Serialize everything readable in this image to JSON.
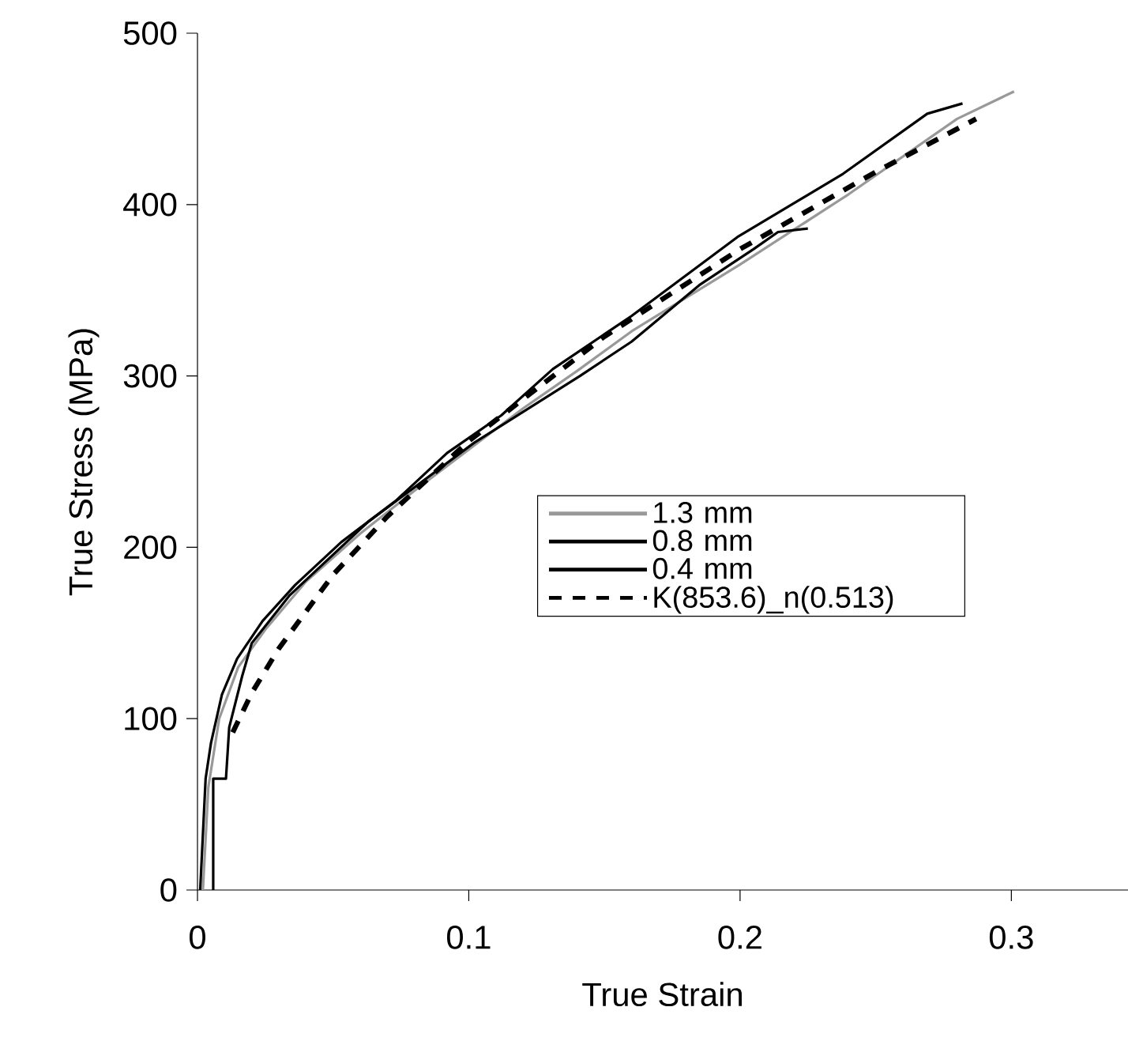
{
  "chart_data": {
    "type": "line",
    "xlabel": "True Strain",
    "ylabel": "True Stress (MPa)",
    "xlim": [
      0,
      0.343
    ],
    "ylim": [
      0,
      500
    ],
    "xticks": [
      0,
      0.1,
      0.2,
      0.3
    ],
    "yticks": [
      0,
      100,
      200,
      300,
      400,
      500
    ],
    "legend": "right",
    "series": [
      {
        "name": "1.3 mm",
        "color": "#999999",
        "line_style": "solid",
        "x": [
          0.002,
          0.004,
          0.008,
          0.015,
          0.025,
          0.04,
          0.06,
          0.08,
          0.1,
          0.12,
          0.14,
          0.16,
          0.2,
          0.24,
          0.28,
          0.301
        ],
        "values": [
          0,
          60,
          100,
          130,
          152,
          180,
          208,
          233,
          257,
          281,
          303,
          326,
          365,
          406,
          450,
          466
        ]
      },
      {
        "name": "0.8 mm",
        "color": "#000000",
        "line_style": "solid",
        "x": [
          0.001,
          0.003,
          0.005,
          0.009,
          0.0146,
          0.024,
          0.036,
          0.053,
          0.073,
          0.092,
          0.112,
          0.131,
          0.16,
          0.199,
          0.238,
          0.269,
          0.282
        ],
        "values": [
          0,
          65,
          86,
          114,
          135,
          157,
          178,
          203,
          227,
          255,
          277,
          304,
          335,
          381,
          418,
          453,
          459
        ]
      },
      {
        "name": "0.4 mm",
        "color": "#000000",
        "line_style": "solid",
        "x": [
          0.0058,
          0.0058,
          0.0105,
          0.0117,
          0.0165,
          0.02,
          0.034,
          0.063,
          0.102,
          0.141,
          0.16,
          0.185,
          0.205,
          0.214,
          0.225
        ],
        "values": [
          0,
          65,
          65,
          95,
          125,
          144,
          172,
          215,
          261,
          300,
          320,
          353,
          374,
          384,
          386
        ]
      },
      {
        "name": "K(853.6)_n(0.513)",
        "color": "#000000",
        "line_style": "dashed",
        "x": [
          0.013,
          0.02,
          0.03,
          0.05,
          0.07,
          0.1,
          0.15,
          0.2,
          0.25,
          0.287
        ],
        "values": [
          92,
          115,
          141,
          184,
          218,
          262,
          323,
          374,
          419,
          450
        ]
      }
    ]
  }
}
